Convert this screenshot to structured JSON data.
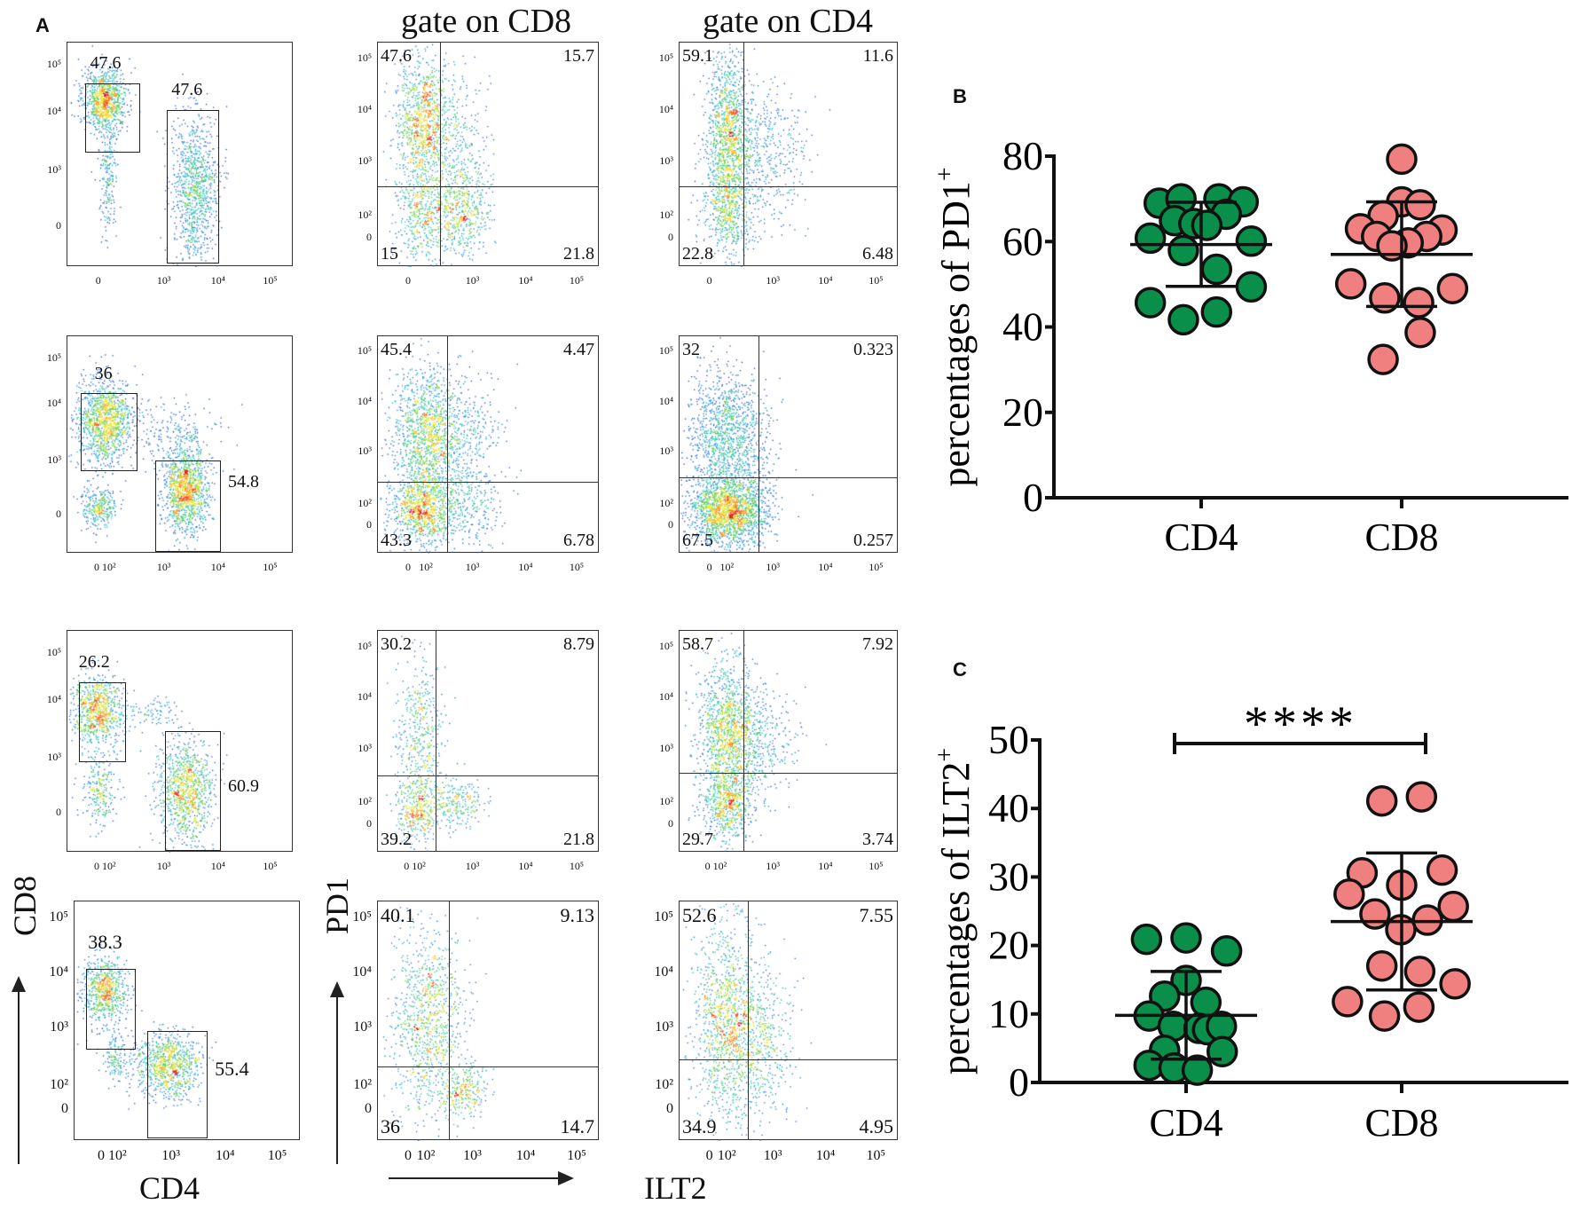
{
  "figure": {
    "panel_a_label": "A",
    "panel_b_label": "B",
    "panel_c_label": "C"
  },
  "panel_a": {
    "column_titles": {
      "cd8": "gate on CD8",
      "cd4": "gate on CD4"
    },
    "axis_labels": {
      "cd8": "CD8",
      "cd4": "CD4",
      "pd1": "PD1",
      "ilt2": "ILT2"
    },
    "rows": [
      {
        "gating": {
          "cd8_gate": "47.6",
          "cd4_gate": "47.6",
          "xticks": [
            "0",
            "10³",
            "10⁴",
            "10⁵"
          ],
          "yticks": [
            "10⁵",
            "10⁴",
            "10³",
            "0"
          ]
        },
        "cd8": {
          "ul": "47.6",
          "ur": "15.7",
          "ll": "15",
          "lr": "21.8",
          "xticks": [
            "0",
            "10³",
            "10⁴",
            "10⁵"
          ],
          "yticks": [
            "10⁵",
            "10⁴",
            "10³",
            "10²",
            "0"
          ]
        },
        "cd4": {
          "ul": "59.1",
          "ur": "11.6",
          "ll": "22.8",
          "lr": "6.48",
          "xticks": [
            "0",
            "10³",
            "10⁴",
            "10⁵"
          ],
          "yticks": [
            "10⁵",
            "10⁴",
            "10³",
            "10²",
            "0"
          ]
        }
      },
      {
        "gating": {
          "cd8_gate": "36",
          "cd4_gate": "54.8",
          "xticks": [
            "0 10²",
            "10³",
            "10⁴",
            "10⁵"
          ],
          "yticks": [
            "10⁵",
            "10⁴",
            "10³",
            "0"
          ]
        },
        "cd8": {
          "ul": "45.4",
          "ur": "4.47",
          "ll": "43.3",
          "lr": "6.78",
          "xticks": [
            "0",
            "10²",
            "10³",
            "10⁴",
            "10⁵"
          ],
          "yticks": [
            "10⁵",
            "10⁴",
            "10³",
            "10²",
            "0"
          ]
        },
        "cd4": {
          "ul": "32",
          "ur": "0.323",
          "ll": "67.5",
          "lr": "0.257",
          "xticks": [
            "0",
            "10²",
            "10³",
            "10⁴",
            "10⁵"
          ],
          "yticks": [
            "10⁵",
            "10⁴",
            "10³",
            "10²",
            "0"
          ]
        }
      },
      {
        "gating": {
          "cd8_gate": "26.2",
          "cd4_gate": "60.9",
          "xticks": [
            "0 10²",
            "10³",
            "10⁴",
            "10⁵"
          ],
          "yticks": [
            "10⁵",
            "10⁴",
            "10³",
            "0"
          ]
        },
        "cd8": {
          "ul": "30.2",
          "ur": "8.79",
          "ll": "39.2",
          "lr": "21.8",
          "xticks": [
            "0 10²",
            "10³",
            "10⁴",
            "10⁵"
          ],
          "yticks": [
            "10⁵",
            "10⁴",
            "10³",
            "10²",
            "0"
          ]
        },
        "cd4": {
          "ul": "58.7",
          "ur": "7.92",
          "ll": "29.7",
          "lr": "3.74",
          "xticks": [
            "0 10²",
            "10³",
            "10⁴",
            "10⁵"
          ],
          "yticks": [
            "10⁵",
            "10⁴",
            "10³",
            "10²",
            "0"
          ]
        }
      },
      {
        "gating": {
          "cd8_gate": "38.3",
          "cd4_gate": "55.4",
          "xticks": [
            "0 10²",
            "10³",
            "10⁴",
            "10⁵"
          ],
          "yticks": [
            "10⁵",
            "10⁴",
            "10³",
            "10²",
            "0"
          ]
        },
        "cd8": {
          "ul": "40.1",
          "ur": "9.13",
          "ll": "36",
          "lr": "14.7",
          "xticks": [
            "0",
            "10²",
            "10³",
            "10⁴",
            "10⁵"
          ],
          "yticks": [
            "10⁵",
            "10⁴",
            "10³",
            "10²",
            "0"
          ]
        },
        "cd4": {
          "ul": "52.6",
          "ur": "7.55",
          "ll": "34.9",
          "lr": "4.95",
          "xticks": [
            "0",
            "10²",
            "10³",
            "10⁴",
            "10⁵"
          ],
          "yticks": [
            "10⁵",
            "10⁴",
            "10³",
            "10²",
            "0"
          ]
        }
      }
    ]
  },
  "chart_data": [
    {
      "id": "B",
      "type": "scatter",
      "title": "",
      "categories": [
        "CD4",
        "CD8"
      ],
      "ylabel": "percentages of PD1",
      "ylabel_superscript": "+",
      "xlabel": "",
      "ylim": [
        0,
        80
      ],
      "yticks": [
        "0",
        "20",
        "40",
        "60",
        "80"
      ],
      "series": [
        {
          "name": "CD4",
          "color": "#0a8f4a",
          "values": [
            69,
            70,
            70,
            69.3,
            66.4,
            64.9,
            64.2,
            63.8,
            60.8,
            60.1,
            57.9,
            53.5,
            49.4,
            45.7,
            43.5,
            41.7
          ],
          "mean": 59.3,
          "sd_range": [
            49.5,
            69.2
          ]
        },
        {
          "name": "CD8",
          "color": "#f08080",
          "values": [
            79.3,
            69.3,
            68.6,
            66,
            63,
            62.7,
            61.2,
            61.2,
            59.7,
            59,
            50.1,
            49,
            46.8,
            45.7,
            38.7,
            32.4
          ],
          "mean": 57,
          "sd_range": [
            44.8,
            69.3
          ]
        }
      ],
      "grid": false
    },
    {
      "id": "C",
      "type": "scatter",
      "title": "",
      "categories": [
        "CD4",
        "CD8"
      ],
      "ylabel": "percentages of ILT2",
      "ylabel_superscript": "+",
      "xlabel": "",
      "ylim": [
        0,
        50
      ],
      "yticks": [
        "0",
        "10",
        "20",
        "30",
        "40",
        "50"
      ],
      "significance": "****",
      "series": [
        {
          "name": "CD4",
          "color": "#0a8f4a",
          "values": [
            20.9,
            21.1,
            19.2,
            14.9,
            12.6,
            11.7,
            9.7,
            8.2,
            7.9,
            7.7,
            8.2,
            4.7,
            4.5,
            2.5,
            2.1,
            1.8
          ],
          "mean": 9.8,
          "sd_range": [
            3.4,
            16.2
          ]
        },
        {
          "name": "CD8",
          "color": "#f08080",
          "values": [
            41.1,
            41.7,
            30.6,
            31,
            28.8,
            27.5,
            25.7,
            24.6,
            23.7,
            22.3,
            17,
            16.2,
            14.4,
            11.8,
            11,
            9.7
          ],
          "mean": 23.5,
          "sd_range": [
            13.5,
            33.5
          ]
        }
      ],
      "grid": false
    }
  ]
}
